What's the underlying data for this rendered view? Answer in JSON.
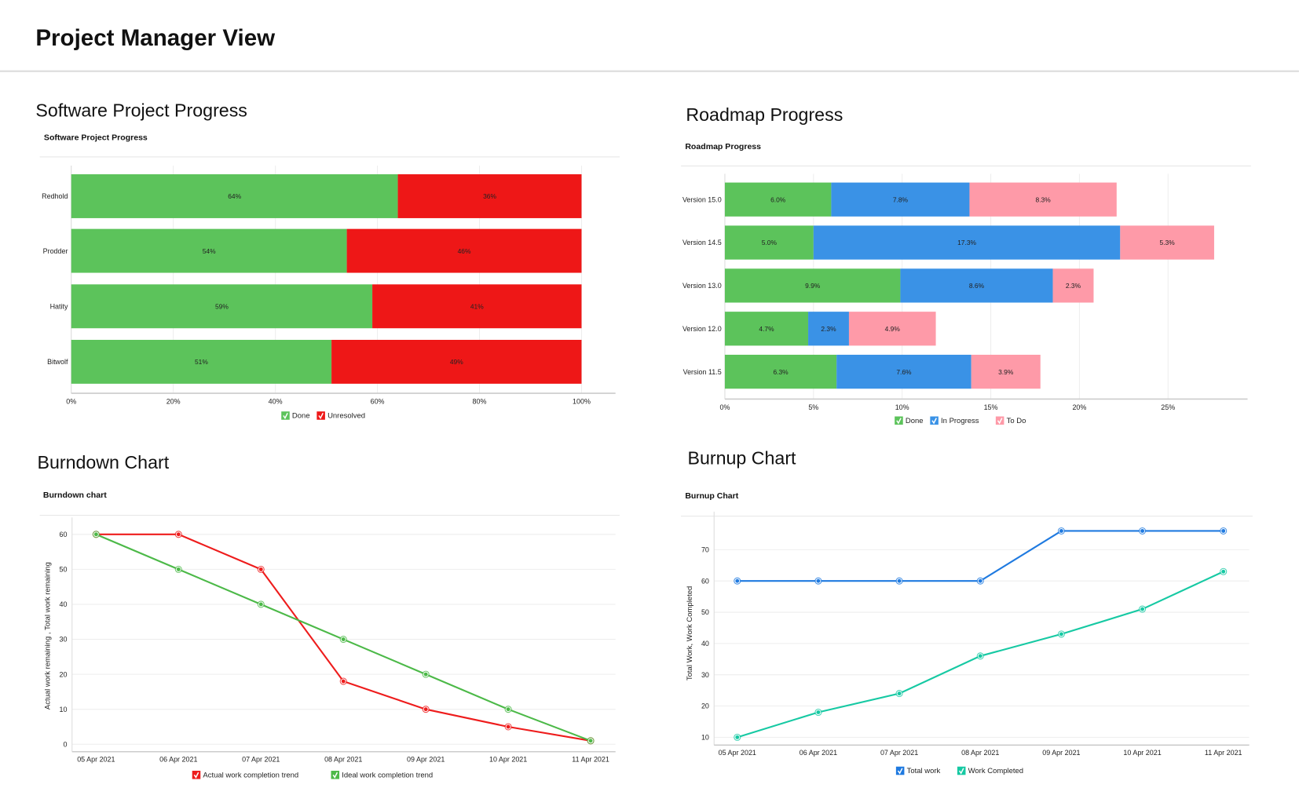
{
  "page_title": "Project Manager View",
  "colors": {
    "done": "#5cc35b",
    "unresolved": "#ee1717",
    "in_progress": "#3a92e6",
    "todo": "#fe9aa8",
    "burndown_actual": "#ee1c1c",
    "burndown_ideal": "#4cb948",
    "burnup_total": "#1f7ae0",
    "burnup_completed": "#16c9a3"
  },
  "sections": {
    "software": {
      "heading": "Software Project Progress",
      "subtitle": "Software Project Progress"
    },
    "roadmap": {
      "heading": "Roadmap Progress",
      "subtitle": "Roadmap Progress"
    },
    "burndown": {
      "heading": "Burndown Chart",
      "subtitle": "Burndown chart"
    },
    "burnup": {
      "heading": "Burnup Chart",
      "subtitle": "Burnup Chart"
    }
  },
  "chart_data": [
    {
      "type": "bar",
      "orientation": "horizontal",
      "stacked": true,
      "title": "Software Project Progress",
      "categories": [
        "Redhold",
        "Prodder",
        "Hatity",
        "Bitwolf"
      ],
      "series": [
        {
          "name": "Done",
          "values": [
            64,
            54,
            59,
            51
          ],
          "labels": [
            "64%",
            "54%",
            "59%",
            "51%"
          ]
        },
        {
          "name": "Unresolved",
          "values": [
            36,
            46,
            41,
            49
          ],
          "labels": [
            "36%",
            "46%",
            "41%",
            "49%"
          ]
        }
      ],
      "xlim": [
        0,
        100
      ],
      "xticks": [
        "0%",
        "20%",
        "40%",
        "60%",
        "80%",
        "100%"
      ],
      "grid": true,
      "legend": "bottom"
    },
    {
      "type": "bar",
      "orientation": "horizontal",
      "stacked": true,
      "title": "Roadmap Progress",
      "categories": [
        "Version 15.0",
        "Version 14.5",
        "Version 13.0",
        "Version 12.0",
        "Version 11.5"
      ],
      "series": [
        {
          "name": "Done",
          "values": [
            6.0,
            5.0,
            9.9,
            4.7,
            6.3
          ],
          "labels": [
            "6.0%",
            "5.0%",
            "9.9%",
            "4.7%",
            "6.3%"
          ]
        },
        {
          "name": "In Progress",
          "values": [
            7.8,
            17.3,
            8.6,
            2.3,
            7.6
          ],
          "labels": [
            "7.8%",
            "17.3%",
            "8.6%",
            "2.3%",
            "7.6%"
          ]
        },
        {
          "name": "To Do",
          "values": [
            8.3,
            5.3,
            2.3,
            4.9,
            3.9
          ],
          "labels": [
            "8.3%",
            "5.3%",
            "2.3%",
            "4.9%",
            "3.9%"
          ]
        }
      ],
      "xlim": [
        0,
        29.5
      ],
      "xticks": [
        "0%",
        "5%",
        "10%",
        "15%",
        "20%",
        "25%"
      ],
      "grid": true,
      "legend": "bottom"
    },
    {
      "type": "line",
      "title": "Burndown chart",
      "x": [
        "05 Apr 2021",
        "06 Apr 2021",
        "07 Apr 2021",
        "08 Apr 2021",
        "09 Apr 2021",
        "10 Apr 2021",
        "11 Apr 2021"
      ],
      "series": [
        {
          "name": "Actual work completion trend",
          "values": [
            60,
            60,
            50,
            18,
            10,
            5,
            1
          ]
        },
        {
          "name": "Ideal work completion trend",
          "values": [
            60,
            50,
            40,
            30,
            20,
            10,
            1
          ]
        }
      ],
      "ylabel": "Actual work remaining , Total work remaining",
      "ylim": [
        0,
        62
      ],
      "yticks": [
        0,
        10,
        20,
        30,
        40,
        50,
        60
      ],
      "grid": true,
      "legend": "bottom"
    },
    {
      "type": "line",
      "title": "Burnup Chart",
      "x": [
        "05 Apr 2021",
        "06 Apr 2021",
        "07 Apr 2021",
        "08 Apr 2021",
        "09 Apr 2021",
        "10 Apr 2021",
        "11 Apr 2021"
      ],
      "series": [
        {
          "name": "Total work",
          "values": [
            60,
            60,
            60,
            60,
            76,
            76,
            76
          ]
        },
        {
          "name": "Work Completed",
          "values": [
            10,
            18,
            24,
            36,
            43,
            51,
            63
          ]
        }
      ],
      "ylabel": "Total Work, Work Completed",
      "ylim": [
        7.5,
        79
      ],
      "yticks": [
        10,
        20,
        30,
        40,
        50,
        60,
        70
      ],
      "grid": true,
      "legend": "bottom"
    }
  ]
}
